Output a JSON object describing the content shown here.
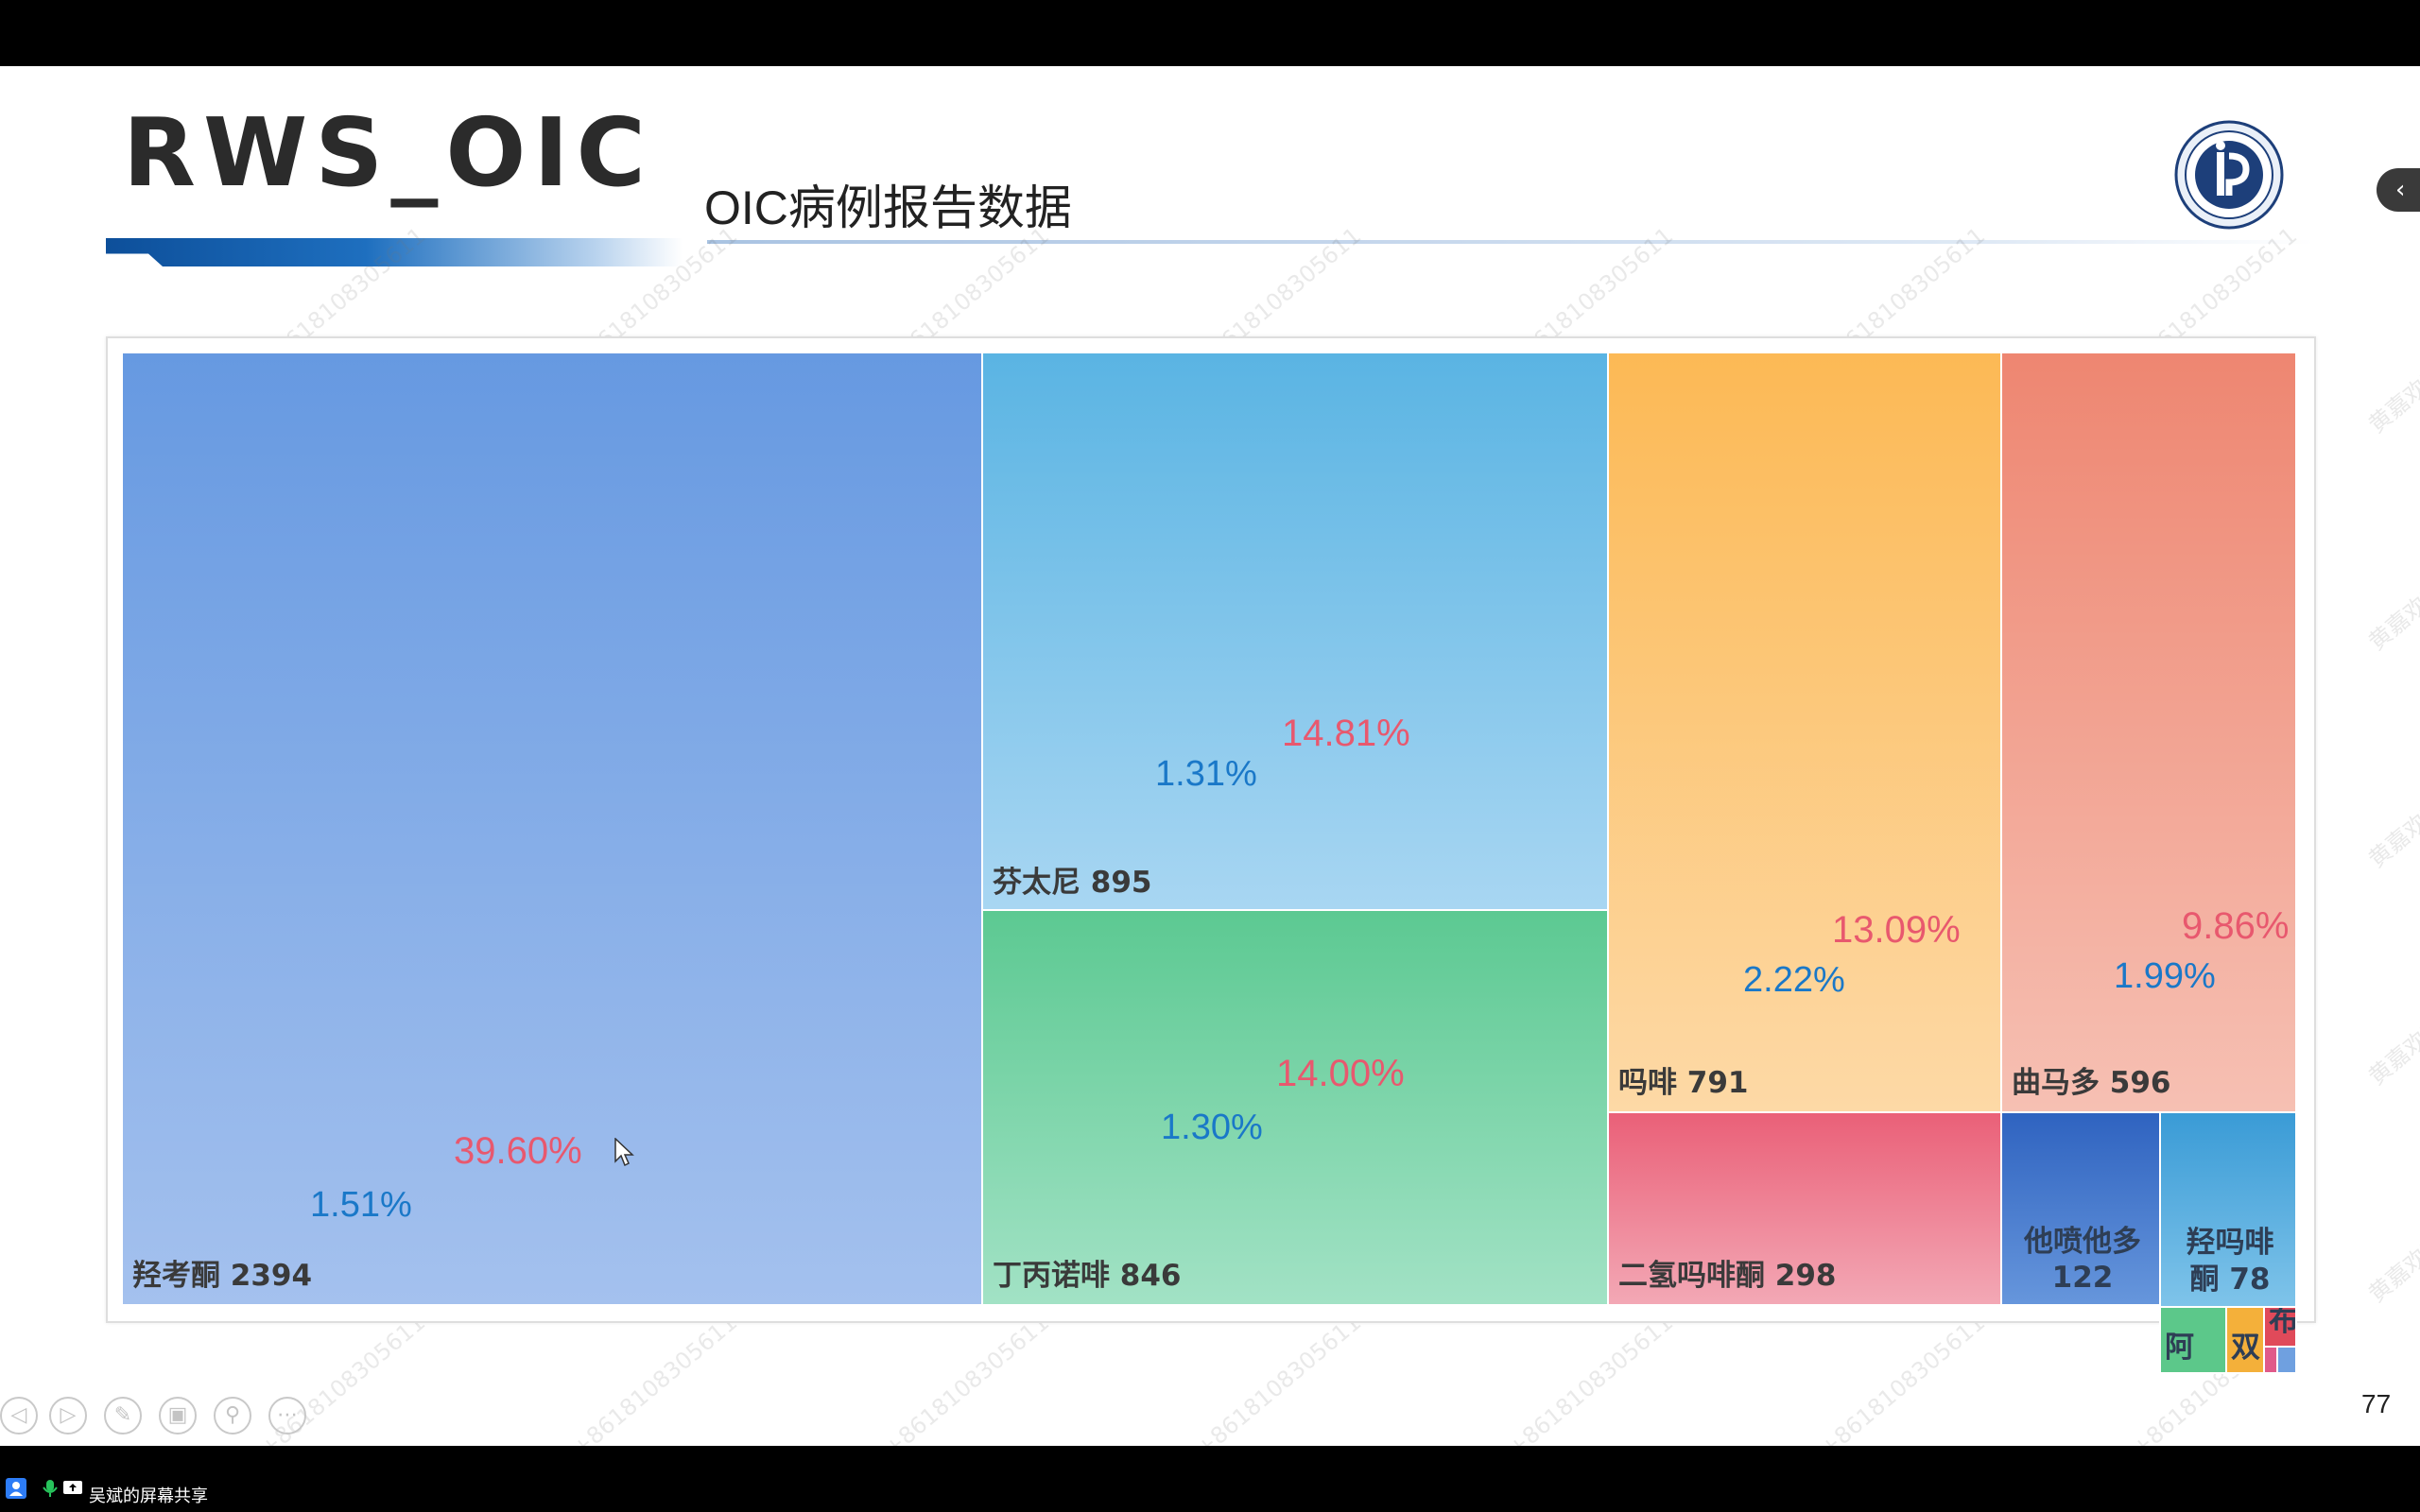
{
  "slide": {
    "title": "RWS_OIC",
    "subtitle": "OIC病例报告数据",
    "page_number": "77"
  },
  "watermark": "黄嘉欢又 +8618108305611",
  "share": {
    "label": "吴斌的屏幕共享"
  },
  "colors": {
    "red_pct": "#e8586e",
    "blue_pct": "#1a78c8",
    "title_bar": "#0d4f9a"
  },
  "chart_data": {
    "type": "treemap",
    "items": [
      {
        "name": "羟考酮",
        "value": 2394,
        "label": "羟考酮 2394",
        "share": "39.60%",
        "rate": "1.51%"
      },
      {
        "name": "芬太尼",
        "value": 895,
        "label": "芬太尼 895",
        "share": "14.81%",
        "rate": "1.31%"
      },
      {
        "name": "丁丙诺啡",
        "value": 846,
        "label": "丁丙诺啡 846",
        "share": "14.00%",
        "rate": "1.30%"
      },
      {
        "name": "吗啡",
        "value": 791,
        "label": "吗啡 791",
        "share": "13.09%",
        "rate": "2.22%"
      },
      {
        "name": "曲马多",
        "value": 596,
        "label": "曲马多 596",
        "share": "9.86%",
        "rate": "1.99%"
      },
      {
        "name": "二氢吗啡酮",
        "value": 298,
        "label": "二氢吗啡酮 298"
      },
      {
        "name": "他喷他多",
        "value": 122,
        "label_line1": "他喷他多",
        "label_line2": "122"
      },
      {
        "name": "羟吗啡酮",
        "value": 78,
        "label_line1": "羟吗啡",
        "label_line2": "酮 78"
      },
      {
        "name": "阿",
        "label": "阿"
      },
      {
        "name": "双",
        "label": "双"
      },
      {
        "name": "布",
        "label": "布"
      }
    ]
  },
  "controls": [
    {
      "name": "prev",
      "glyph": "◁"
    },
    {
      "name": "next",
      "glyph": "▷"
    },
    {
      "name": "pen",
      "glyph": "✎"
    },
    {
      "name": "slides",
      "glyph": "▣"
    },
    {
      "name": "zoom",
      "glyph": "⚲"
    },
    {
      "name": "more",
      "glyph": "⋯"
    }
  ]
}
